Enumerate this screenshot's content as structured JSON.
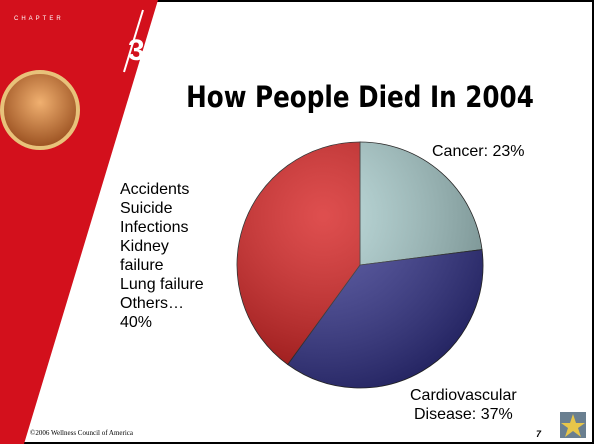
{
  "chapter_label": "CHAPTER",
  "chapter_number": "3",
  "chart_data": {
    "type": "pie",
    "title": "How People Died In 2004",
    "values": [
      23,
      37,
      40
    ],
    "value_labels": [
      "Cancer: 23%",
      "Cardiovascular\nDisease: 37%",
      "Accidents\nSuicide\nInfections\nKidney\nfailure\nLung failure\nOthers…\n40%"
    ],
    "colors": [
      "#a9cfcf",
      "#30308e",
      "#d41414"
    ]
  },
  "footer": "©2006 Wellness Council of America",
  "page_number": "7"
}
